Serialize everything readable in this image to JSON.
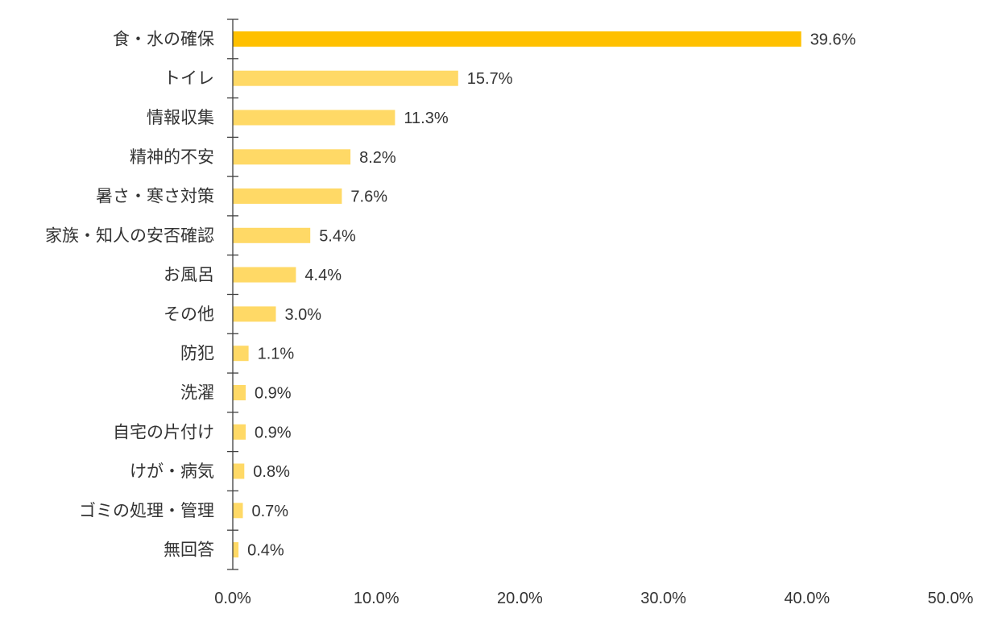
{
  "chart_data": {
    "type": "bar",
    "orientation": "horizontal",
    "categories": [
      "食・水の確保",
      "トイレ",
      "情報収集",
      "精神的不安",
      "暑さ・寒さ対策",
      "家族・知人の安否確認",
      "お風呂",
      "その他",
      "防犯",
      "洗濯",
      "自宅の片付け",
      "けが・病気",
      "ゴミの処理・管理",
      "無回答"
    ],
    "values": [
      39.6,
      15.7,
      11.3,
      8.2,
      7.6,
      5.4,
      4.4,
      3.0,
      1.1,
      0.9,
      0.9,
      0.8,
      0.7,
      0.4
    ],
    "value_labels": [
      "39.6%",
      "15.7%",
      "11.3%",
      "8.2%",
      "7.6%",
      "5.4%",
      "4.4%",
      "3.0%",
      "1.1%",
      "0.9%",
      "0.9%",
      "0.8%",
      "0.7%",
      "0.4%"
    ],
    "xlim": [
      0,
      50
    ],
    "x_ticks": [
      0,
      10,
      20,
      30,
      40,
      50
    ],
    "x_tick_labels": [
      "0.0%",
      "10.0%",
      "20.0%",
      "30.0%",
      "40.0%",
      "50.0%"
    ],
    "title": "",
    "xlabel": "",
    "ylabel": "",
    "grid": false,
    "colors": {
      "highlight_bar": "#FFC000",
      "bar": "#FFD966",
      "axis": "#404040",
      "text": "#333333"
    }
  }
}
